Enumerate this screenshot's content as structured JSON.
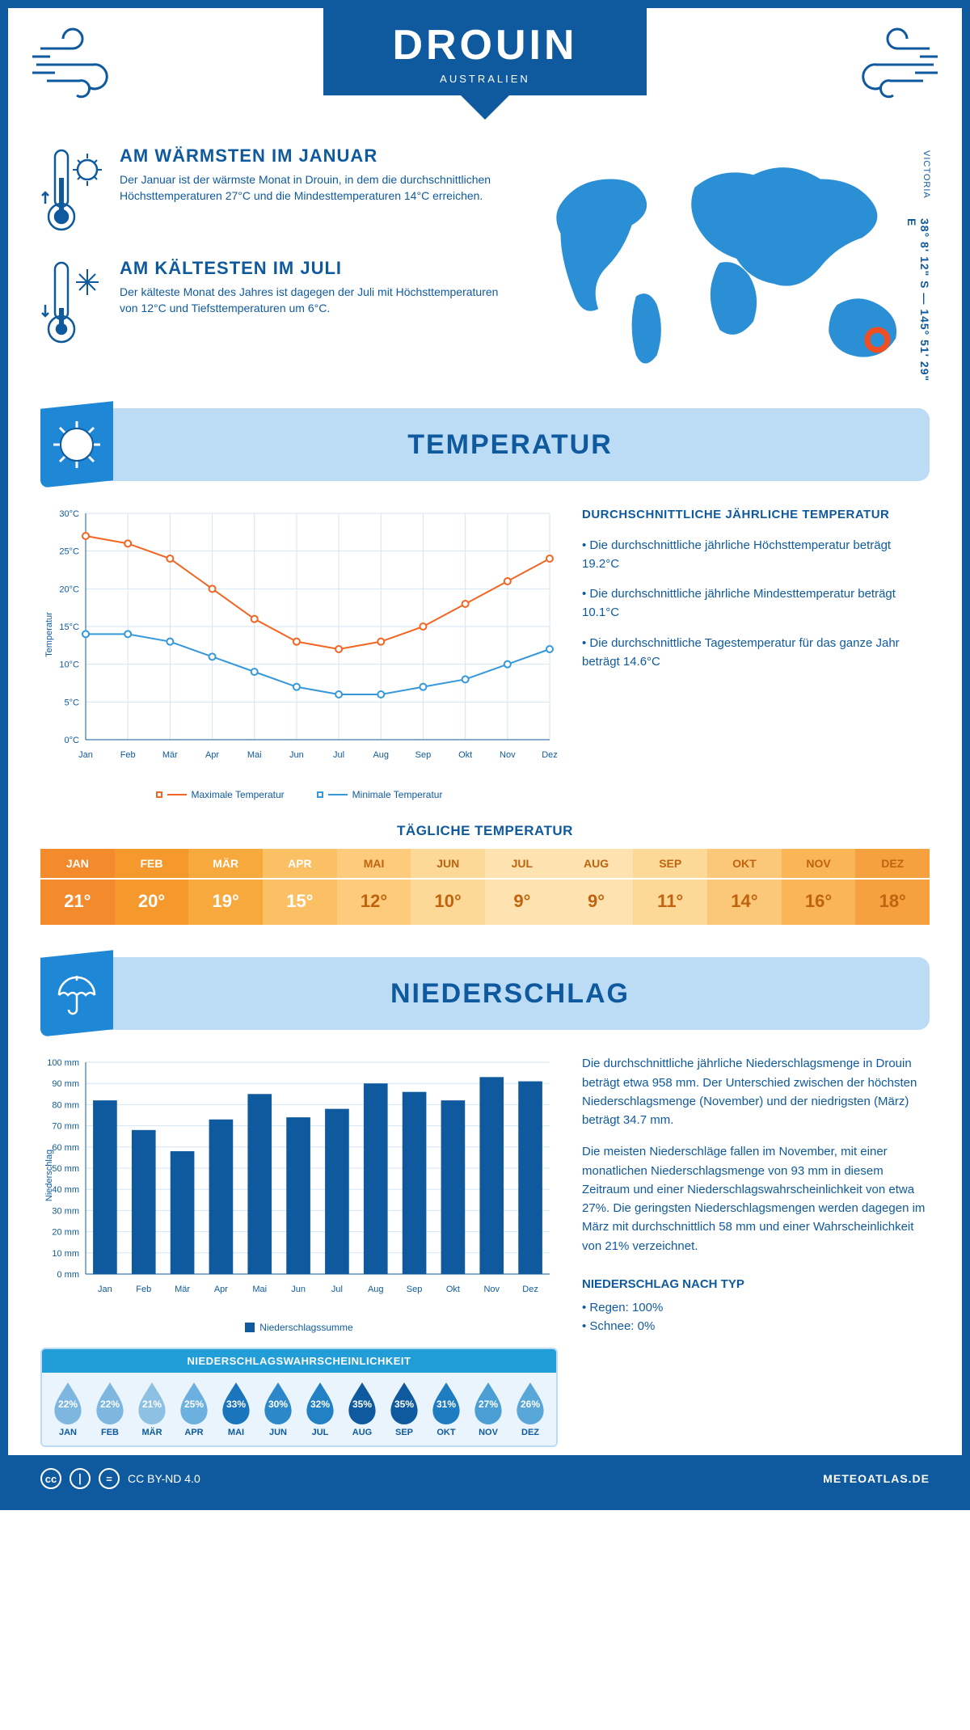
{
  "header": {
    "city": "DROUIN",
    "country": "AUSTRALIEN"
  },
  "map": {
    "region": "VICTORIA",
    "coords": "38° 8' 12\" S — 145° 51' 29\" E",
    "marker_color": "#f04e23"
  },
  "warm": {
    "title": "AM WÄRMSTEN IM JANUAR",
    "text": "Der Januar ist der wärmste Monat in Drouin, in dem die durchschnittlichen Höchsttemperaturen 27°C und die Mindesttemperaturen 14°C erreichen."
  },
  "cold": {
    "title": "AM KÄLTESTEN IM JULI",
    "text": "Der kälteste Monat des Jahres ist dagegen der Juli mit Höchsttemperaturen von 12°C und Tiefsttemperaturen um 6°C."
  },
  "sections": {
    "temp": "TEMPERATUR",
    "precip": "NIEDERSCHLAG"
  },
  "temp_chart": {
    "months": [
      "Jan",
      "Feb",
      "Mär",
      "Apr",
      "Mai",
      "Jun",
      "Jul",
      "Aug",
      "Sep",
      "Okt",
      "Nov",
      "Dez"
    ],
    "max": [
      27,
      26,
      24,
      20,
      16,
      13,
      12,
      13,
      15,
      18,
      21,
      24
    ],
    "min": [
      14,
      14,
      13,
      11,
      9,
      7,
      6,
      6,
      7,
      8,
      10,
      12
    ],
    "ylim": [
      0,
      30
    ],
    "ytick": 5,
    "yunit": "°C",
    "ylabel": "Temperatur",
    "max_color": "#f26522",
    "min_color": "#3498db",
    "grid_color": "#d5e5f2",
    "legend_max": "Maximale Temperatur",
    "legend_min": "Minimale Temperatur"
  },
  "temp_info": {
    "title": "DURCHSCHNITTLICHE JÄHRLICHE TEMPERATUR",
    "b1": "• Die durchschnittliche jährliche Höchsttemperatur beträgt 19.2°C",
    "b2": "• Die durchschnittliche jährliche Mindesttemperatur beträgt 10.1°C",
    "b3": "• Die durchschnittliche Tagestemperatur für das ganze Jahr beträgt 14.6°C"
  },
  "daily": {
    "title": "TÄGLICHE TEMPERATUR",
    "months": [
      "JAN",
      "FEB",
      "MÄR",
      "APR",
      "MAI",
      "JUN",
      "JUL",
      "AUG",
      "SEP",
      "OKT",
      "NOV",
      "DEZ"
    ],
    "values": [
      "21°",
      "20°",
      "19°",
      "15°",
      "12°",
      "10°",
      "9°",
      "9°",
      "11°",
      "14°",
      "16°",
      "18°"
    ],
    "head_colors": [
      "#f38a2c",
      "#f6992d",
      "#f7a93e",
      "#fac063",
      "#fccb7b",
      "#fdd998",
      "#fee3b0",
      "#fee3b0",
      "#fdd998",
      "#fbc778",
      "#f9b556",
      "#f6a140"
    ],
    "val_colors": [
      "#f38a2c",
      "#f6992d",
      "#f7a93e",
      "#fac063",
      "#fccb7b",
      "#fdd998",
      "#fee3b0",
      "#fee3b0",
      "#fdd998",
      "#fbc778",
      "#f9b556",
      "#f6a140"
    ],
    "dark_text_from": 4
  },
  "precip_chart": {
    "months": [
      "Jan",
      "Feb",
      "Mär",
      "Apr",
      "Mai",
      "Jun",
      "Jul",
      "Aug",
      "Sep",
      "Okt",
      "Nov",
      "Dez"
    ],
    "values": [
      82,
      68,
      58,
      73,
      85,
      74,
      78,
      90,
      86,
      82,
      93,
      91
    ],
    "ylim": [
      0,
      100
    ],
    "ytick": 10,
    "yunit": " mm",
    "ylabel": "Niederschlag",
    "bar_color": "#0f5a9e",
    "grid_color": "#d5e5f2",
    "legend": "Niederschlagssumme"
  },
  "precip_text": {
    "p1": "Die durchschnittliche jährliche Niederschlagsmenge in Drouin beträgt etwa 958 mm. Der Unterschied zwischen der höchsten Niederschlagsmenge (November) und der niedrigsten (März) beträgt 34.7 mm.",
    "p2": "Die meisten Niederschläge fallen im November, mit einer monatlichen Niederschlagsmenge von 93 mm in diesem Zeitraum und einer Niederschlagswahrscheinlichkeit von etwa 27%. Die geringsten Niederschlagsmengen werden dagegen im März mit durchschnittlich 58 mm und einer Wahrscheinlichkeit von 21% verzeichnet.",
    "type_title": "NIEDERSCHLAG NACH TYP",
    "t1": "• Regen: 100%",
    "t2": "• Schnee: 0%"
  },
  "prob": {
    "title": "NIEDERSCHLAGSWAHRSCHEINLICHKEIT",
    "months": [
      "JAN",
      "FEB",
      "MÄR",
      "APR",
      "MAI",
      "JUN",
      "JUL",
      "AUG",
      "SEP",
      "OKT",
      "NOV",
      "DEZ"
    ],
    "values": [
      "22%",
      "22%",
      "21%",
      "25%",
      "33%",
      "30%",
      "32%",
      "35%",
      "35%",
      "31%",
      "27%",
      "26%"
    ],
    "colors": [
      "#7db7e0",
      "#7db7e0",
      "#8dc0e3",
      "#6bb0df",
      "#1b75bc",
      "#2d88ca",
      "#2280c5",
      "#0f5a9e",
      "#0f5a9e",
      "#1e7cc0",
      "#4b9fd5",
      "#59a6d8"
    ]
  },
  "footer": {
    "license": "CC BY-ND 4.0",
    "site": "METEOATLAS.DE"
  },
  "colors": {
    "primary": "#0f5a9e",
    "light": "#bcdcf5",
    "accent": "#1e88d6"
  }
}
